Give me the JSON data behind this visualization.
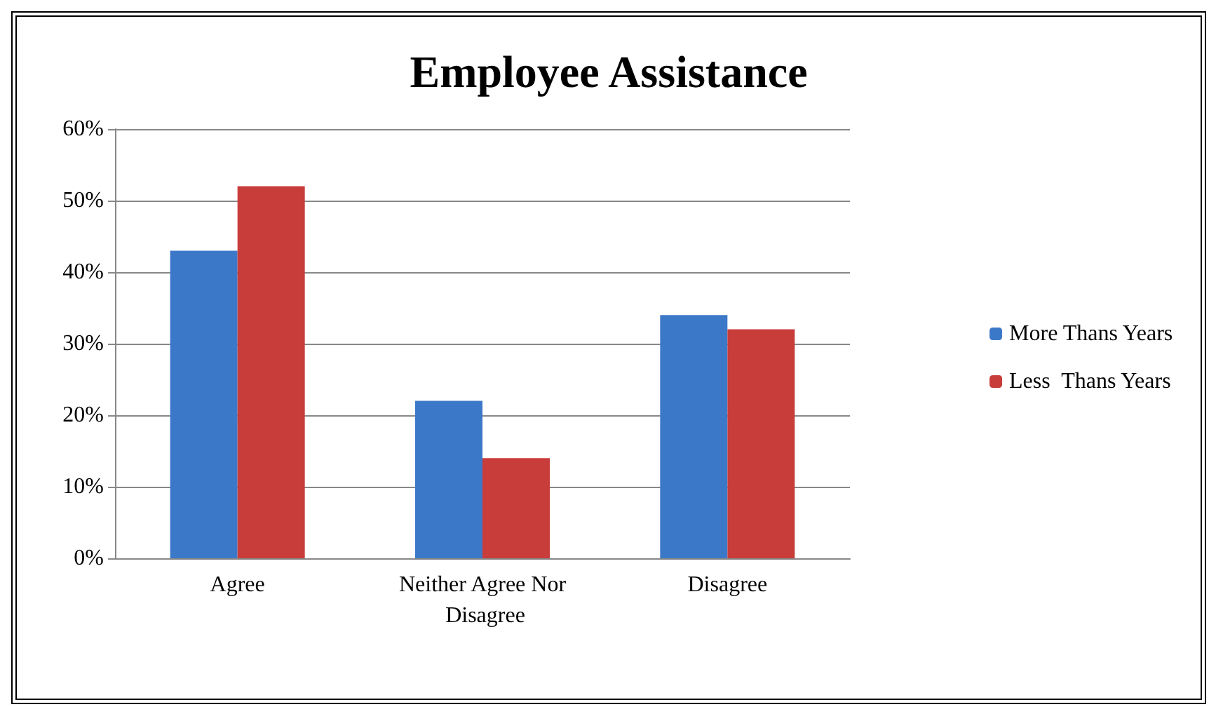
{
  "chart_data": {
    "type": "bar",
    "title": "Employee Assistance",
    "categories": [
      "Agree",
      "Neither Agree Nor Disagree",
      "Disagree"
    ],
    "series": [
      {
        "name": "More Thans Years",
        "color": "#3c78c8",
        "values": [
          43,
          22,
          34
        ]
      },
      {
        "name": "Less  Thans Years",
        "color": "#c83c3a",
        "values": [
          52,
          14,
          32
        ]
      }
    ],
    "ylim": [
      0,
      60
    ],
    "yticks": [
      {
        "value": 0,
        "label": "0%"
      },
      {
        "value": 10,
        "label": "10%"
      },
      {
        "value": 20,
        "label": "20%"
      },
      {
        "value": 30,
        "label": "30%"
      },
      {
        "value": 40,
        "label": "40%"
      },
      {
        "value": 50,
        "label": "50%"
      },
      {
        "value": 60,
        "label": "60%"
      }
    ],
    "grid": "y",
    "legend": "right"
  }
}
